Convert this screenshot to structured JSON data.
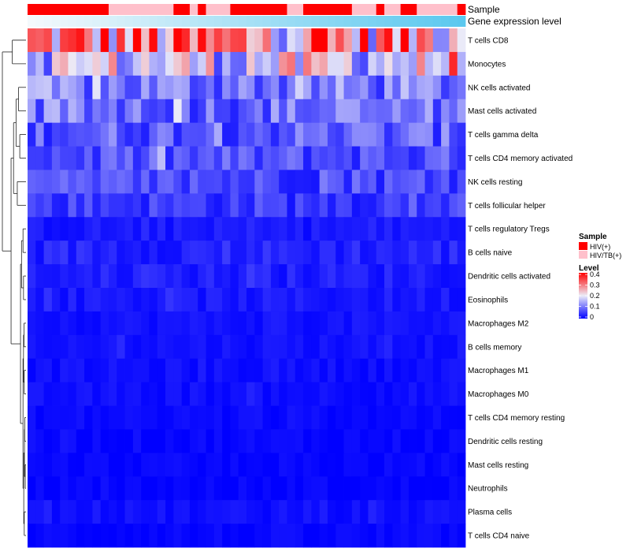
{
  "chart_data": {
    "type": "heatmap",
    "title": "",
    "n_columns": 54,
    "rows": [
      "T cells CD8",
      "Monocytes",
      "NK cells activated",
      "Mast cells activated",
      "T cells gamma delta",
      "T cells CD4 memory activated",
      "NK cells resting",
      "T cells follicular helper",
      "T cells regulatory  Tregs",
      "B cells naive",
      "Dendritic cells activated",
      "Eosinophils",
      "Macrophages M2",
      "B cells memory",
      "Macrophages M1",
      "Macrophages M0",
      "T cells CD4 memory resting",
      "Dendritic cells resting",
      "Mast cells resting",
      "Neutrophils",
      "Plasma cells",
      "T cells CD4 naive"
    ],
    "row_means": [
      0.27,
      0.18,
      0.1,
      0.09,
      0.08,
      0.065,
      0.06,
      0.05,
      0.02,
      0.03,
      0.025,
      0.02,
      0.015,
      0.015,
      0.012,
      0.012,
      0.008,
      0.006,
      0.004,
      0.003,
      0.012,
      0.005
    ],
    "annotations": [
      {
        "name": "Sample",
        "groups": [
          {
            "label": "HIV(+)",
            "color": "#FF0000"
          },
          {
            "label": "HIV/TB(+)",
            "color": "#FFC0CB"
          }
        ],
        "pattern": [
          0,
          0,
          0,
          0,
          0,
          0,
          0,
          0,
          0,
          0,
          1,
          1,
          1,
          1,
          1,
          1,
          1,
          1,
          0,
          0,
          1,
          0,
          1,
          1,
          1,
          0,
          0,
          0,
          0,
          0,
          0,
          0,
          1,
          1,
          0,
          0,
          0,
          0,
          0,
          0,
          1,
          1,
          1,
          0,
          1,
          1,
          0,
          0,
          1,
          1,
          1,
          1,
          1,
          0
        ]
      },
      {
        "name": "Gene expression level",
        "gradient": [
          "#F4F9FC",
          "#5BC8EF"
        ]
      }
    ],
    "legend": {
      "sample_title": "Sample",
      "level_title": "Level",
      "level_ticks": [
        0.4,
        0.3,
        0.2,
        0.1,
        0
      ],
      "level_labels": [
        "0.4",
        "0.3",
        "0.2",
        "0.1",
        "0"
      ],
      "range": [
        0,
        0.4
      ]
    },
    "color_scale": {
      "low": "#0000FF",
      "mid": "#ECECF8",
      "high": "#FF0000",
      "mid_value": 0.2,
      "max_value": 0.4
    },
    "dendrogram": {
      "leaf_order": [
        0,
        1,
        2,
        3,
        4,
        5,
        6,
        7,
        8,
        9,
        10,
        11,
        12,
        13,
        14,
        15,
        16,
        17,
        18,
        19,
        20,
        21
      ],
      "merges": [
        {
          "a": "L0",
          "b": "L1",
          "height": 0.55
        },
        {
          "a": "L2",
          "b": "L3",
          "height": 0.3
        },
        {
          "a": "L4",
          "b": "L5",
          "height": 0.25
        },
        {
          "a": "M1",
          "b": "M2",
          "height": 0.4
        },
        {
          "a": "L6",
          "b": "L7",
          "height": 0.35
        },
        {
          "a": "M3",
          "b": "M4",
          "height": 0.5
        },
        {
          "a": "L8",
          "b": "L9",
          "height": 0.12
        },
        {
          "a": "L10",
          "b": "L11",
          "height": 0.1
        },
        {
          "a": "M6",
          "b": "M7",
          "height": 0.18
        },
        {
          "a": "L12",
          "b": "L13",
          "height": 0.08
        },
        {
          "a": "L14",
          "b": "L15",
          "height": 0.07
        },
        {
          "a": "M9",
          "b": "M10",
          "height": 0.1
        },
        {
          "a": "L16",
          "b": "L17",
          "height": 0.05
        },
        {
          "a": "L18",
          "b": "L19",
          "height": 0.03
        },
        {
          "a": "M12",
          "b": "M13",
          "height": 0.06
        },
        {
          "a": "L20",
          "b": "L21",
          "height": 0.07
        },
        {
          "a": "M14",
          "b": "M15",
          "height": 0.09
        },
        {
          "a": "M11",
          "b": "M16",
          "height": 0.12
        },
        {
          "a": "M8",
          "b": "M17",
          "height": 0.22
        },
        {
          "a": "M5",
          "b": "M18",
          "height": 0.6
        },
        {
          "a": "M0",
          "b": "M19",
          "height": 0.95
        }
      ]
    }
  }
}
